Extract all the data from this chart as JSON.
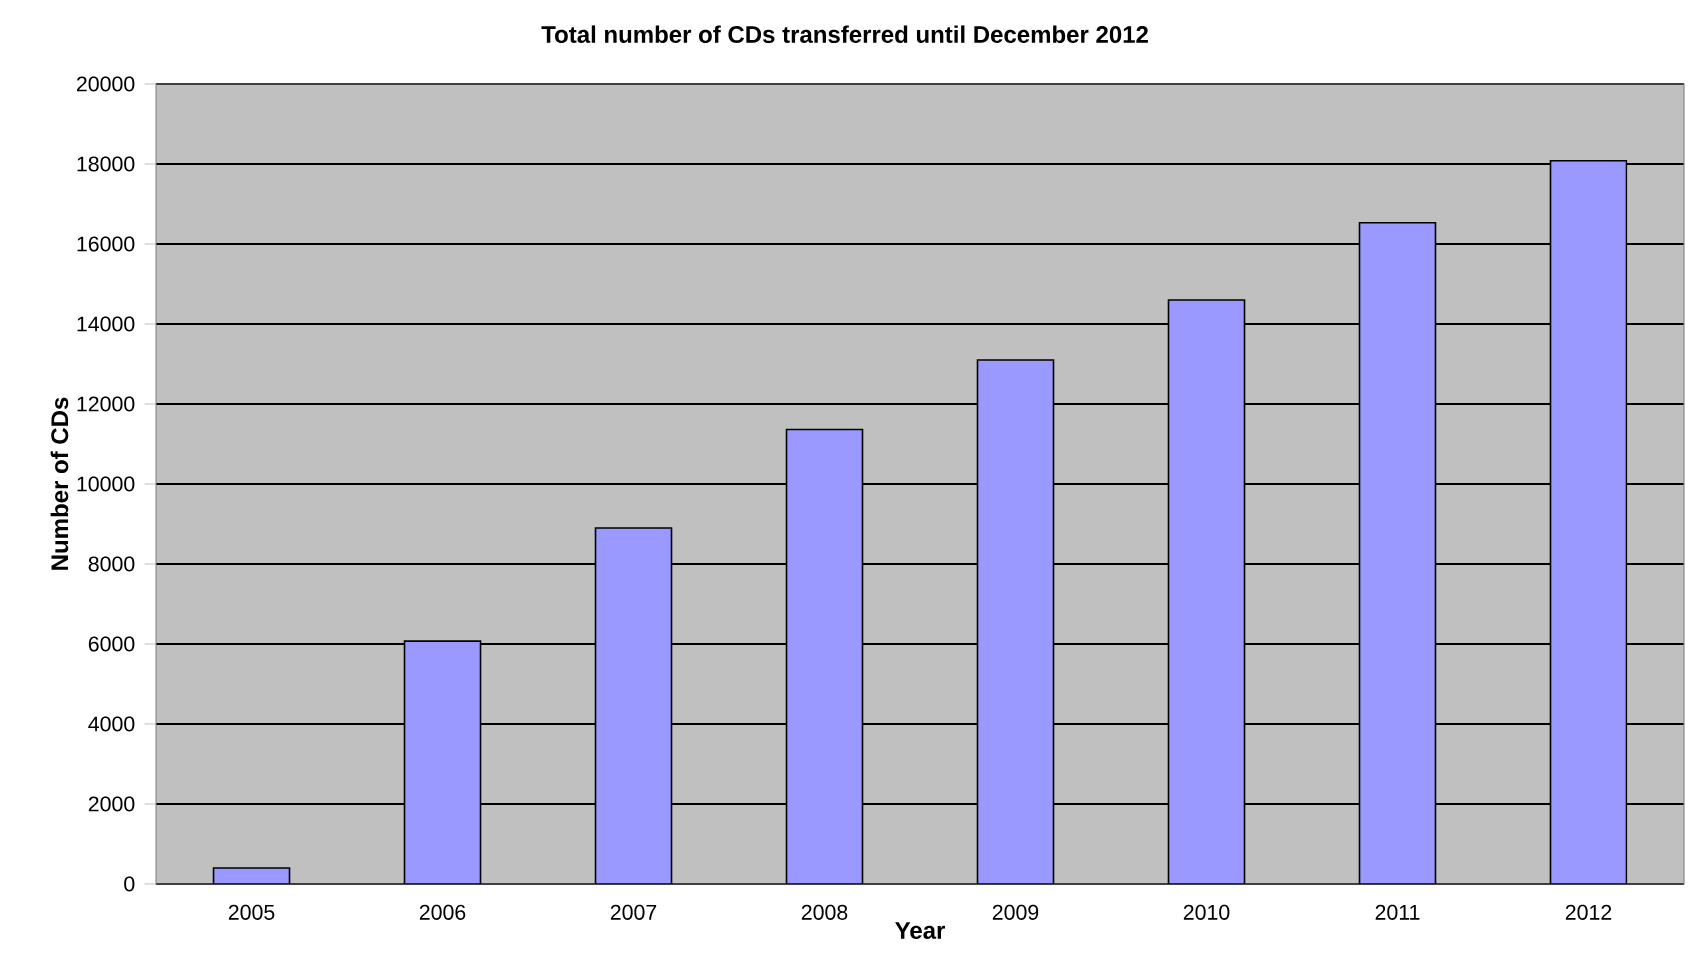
{
  "chart_data": {
    "type": "bar",
    "title": "Total number of CDs transferred until December 2012",
    "xlabel": "Year",
    "ylabel": "Number of CDs",
    "categories": [
      "2005",
      "2006",
      "2007",
      "2008",
      "2009",
      "2010",
      "2011",
      "2012"
    ],
    "values": [
      400,
      6070,
      8900,
      11360,
      13100,
      14600,
      16530,
      18080
    ],
    "color": "#9999ff",
    "ylim": [
      0,
      20000
    ],
    "yticks": [
      0,
      2000,
      4000,
      6000,
      8000,
      10000,
      12000,
      14000,
      16000,
      18000,
      20000
    ],
    "grid": "y"
  }
}
